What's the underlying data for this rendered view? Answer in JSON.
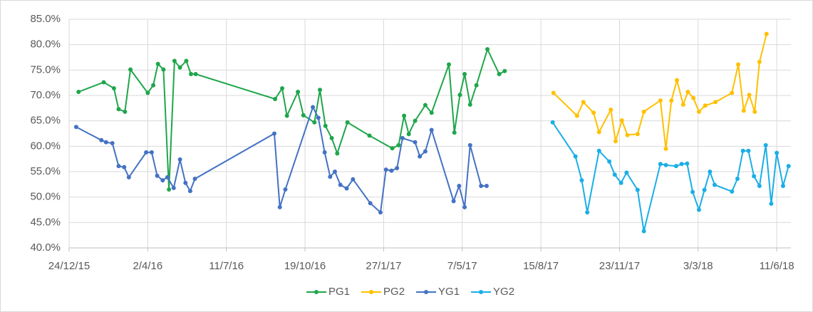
{
  "chart_data": {
    "type": "line",
    "xlim": [
      "2015-12-24",
      "2018-06-29"
    ],
    "xticks": [
      {
        "value": "2015-12-24",
        "label": "24/12/15"
      },
      {
        "value": "2016-04-02",
        "label": "2/4/16"
      },
      {
        "value": "2016-07-11",
        "label": "11/7/16"
      },
      {
        "value": "2016-10-19",
        "label": "19/10/16"
      },
      {
        "value": "2017-01-27",
        "label": "27/1/17"
      },
      {
        "value": "2017-05-07",
        "label": "7/5/17"
      },
      {
        "value": "2017-08-15",
        "label": "15/8/17"
      },
      {
        "value": "2017-11-23",
        "label": "23/11/17"
      },
      {
        "value": "2018-03-03",
        "label": "3/3/18"
      },
      {
        "value": "2018-06-11",
        "label": "11/6/18"
      }
    ],
    "ylim": [
      40,
      85
    ],
    "yticks": [
      {
        "value": 40,
        "label": "40.0%"
      },
      {
        "value": 45,
        "label": "45.0%"
      },
      {
        "value": 50,
        "label": "50.0%"
      },
      {
        "value": 55,
        "label": "55.0%"
      },
      {
        "value": 60,
        "label": "60.0%"
      },
      {
        "value": 65,
        "label": "65.0%"
      },
      {
        "value": 70,
        "label": "70.0%"
      },
      {
        "value": 75,
        "label": "75.0%"
      },
      {
        "value": 80,
        "label": "80.0%"
      },
      {
        "value": 85,
        "label": "85.0%"
      }
    ],
    "grid": true,
    "legend": "bottom",
    "series": [
      {
        "name": "PG1",
        "color": "#1fa64a",
        "x": [
          "2016-01-05",
          "2016-02-06",
          "2016-02-19",
          "2016-02-25",
          "2016-03-04",
          "2016-03-11",
          "2016-04-02",
          "2016-04-09",
          "2016-04-15",
          "2016-04-22",
          "2016-04-29",
          "2016-05-06",
          "2016-05-13",
          "2016-05-21",
          "2016-05-27",
          "2016-06-02",
          "2016-09-11",
          "2016-09-20",
          "2016-09-26",
          "2016-10-10",
          "2016-10-17",
          "2016-10-31",
          "2016-11-07",
          "2016-11-14",
          "2016-11-22",
          "2016-11-29",
          "2016-12-12",
          "2017-01-09",
          "2017-02-07",
          "2017-02-15",
          "2017-02-22",
          "2017-02-28",
          "2017-03-08",
          "2017-03-21",
          "2017-03-29",
          "2017-04-20",
          "2017-04-27",
          "2017-05-04",
          "2017-05-10",
          "2017-05-17",
          "2017-05-25",
          "2017-06-08",
          "2017-06-23",
          "2017-06-30"
        ],
        "values": [
          70.7,
          72.6,
          71.4,
          67.3,
          66.8,
          75.1,
          70.5,
          72.0,
          76.2,
          75.1,
          51.5,
          76.8,
          75.5,
          76.8,
          74.2,
          74.2,
          69.3,
          71.4,
          66.0,
          70.7,
          66.1,
          64.7,
          71.1,
          64.0,
          61.6,
          58.6,
          64.7,
          62.1,
          59.6,
          60.2,
          66.0,
          62.4,
          65.0,
          68.1,
          66.6,
          76.1,
          62.7,
          70.1,
          74.2,
          68.2,
          72.0,
          79.1,
          74.2,
          74.8
        ]
      },
      {
        "name": "PG2",
        "color": "#ffc000",
        "x": [
          "2017-08-31",
          "2017-09-30",
          "2017-10-08",
          "2017-10-21",
          "2017-10-28",
          "2017-11-12",
          "2017-11-18",
          "2017-11-26",
          "2017-12-03",
          "2017-12-16",
          "2017-12-24",
          "2018-01-14",
          "2018-01-21",
          "2018-01-28",
          "2018-02-04",
          "2018-02-12",
          "2018-02-18",
          "2018-02-25",
          "2018-03-04",
          "2018-03-12",
          "2018-03-25",
          "2018-04-15",
          "2018-04-23",
          "2018-04-30",
          "2018-05-07",
          "2018-05-14",
          "2018-05-20",
          "2018-05-29"
        ],
        "values": [
          70.5,
          66.0,
          68.7,
          66.6,
          62.8,
          67.2,
          61.0,
          65.1,
          62.2,
          62.4,
          66.8,
          69.0,
          59.5,
          69.0,
          73.0,
          68.2,
          70.7,
          69.5,
          66.8,
          68.0,
          68.7,
          70.5,
          76.1,
          67.0,
          70.1,
          66.8,
          76.6,
          82.1
        ]
      },
      {
        "name": "YG1",
        "color": "#4472c4",
        "x": [
          "2016-01-02",
          "2016-02-03",
          "2016-02-09",
          "2016-02-17",
          "2016-02-25",
          "2016-03-03",
          "2016-03-09",
          "2016-03-31",
          "2016-04-07",
          "2016-04-14",
          "2016-04-21",
          "2016-04-27",
          "2016-05-05",
          "2016-05-13",
          "2016-05-20",
          "2016-05-26",
          "2016-06-01",
          "2016-09-10",
          "2016-09-17",
          "2016-09-24",
          "2016-10-29",
          "2016-11-05",
          "2016-11-13",
          "2016-11-20",
          "2016-11-26",
          "2016-12-03",
          "2016-12-11",
          "2016-12-19",
          "2017-01-10",
          "2017-01-23",
          "2017-01-30",
          "2017-02-06",
          "2017-02-13",
          "2017-02-20",
          "2017-03-08",
          "2017-03-14",
          "2017-03-21",
          "2017-03-29",
          "2017-04-26",
          "2017-05-03",
          "2017-05-10",
          "2017-05-17",
          "2017-05-31",
          "2017-06-07"
        ],
        "values": [
          63.8,
          61.2,
          60.8,
          60.6,
          56.1,
          55.9,
          53.9,
          58.8,
          58.8,
          54.2,
          53.3,
          53.9,
          51.8,
          57.4,
          52.8,
          51.2,
          53.6,
          62.5,
          48.0,
          51.5,
          67.7,
          65.6,
          58.8,
          54.0,
          55.0,
          52.4,
          51.7,
          53.5,
          48.8,
          47.0,
          55.4,
          55.2,
          55.7,
          61.6,
          60.8,
          58.0,
          59.0,
          63.2,
          49.2,
          52.2,
          48.0,
          60.2,
          52.2,
          52.2
        ]
      },
      {
        "name": "YG2",
        "color": "#1aaee6",
        "x": [
          "2017-08-30",
          "2017-09-28",
          "2017-10-06",
          "2017-10-13",
          "2017-10-28",
          "2017-11-10",
          "2017-11-17",
          "2017-11-25",
          "2017-12-02",
          "2017-12-16",
          "2017-12-24",
          "2018-01-14",
          "2018-01-21",
          "2018-02-03",
          "2018-02-10",
          "2018-02-17",
          "2018-02-24",
          "2018-03-04",
          "2018-03-11",
          "2018-03-18",
          "2018-03-24",
          "2018-04-15",
          "2018-04-22",
          "2018-04-29",
          "2018-05-06",
          "2018-05-13",
          "2018-05-20",
          "2018-05-28",
          "2018-06-04",
          "2018-06-11",
          "2018-06-19",
          "2018-06-26"
        ],
        "values": [
          64.7,
          58.0,
          53.3,
          47.0,
          59.1,
          57.0,
          54.4,
          52.8,
          54.8,
          51.4,
          43.3,
          56.5,
          56.3,
          56.1,
          56.5,
          56.6,
          51.0,
          47.5,
          51.4,
          55.0,
          52.4,
          51.1,
          53.6,
          59.1,
          59.1,
          54.1,
          52.2,
          60.2,
          48.7,
          58.7,
          52.2,
          56.1
        ]
      }
    ]
  }
}
